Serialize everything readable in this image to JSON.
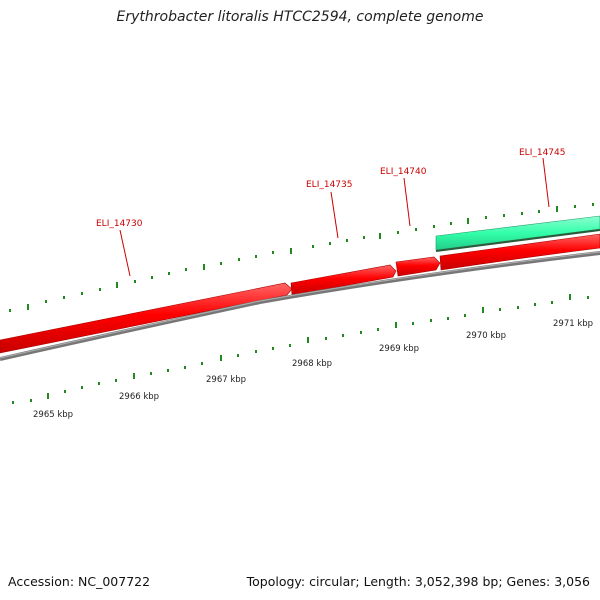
{
  "title": "Erythrobacter litoralis HTCC2594, complete genome",
  "footer": {
    "accession": "Accession: NC_007722",
    "summary": "Topology: circular; Length: 3,052,398 bp; Genes: 3,056"
  },
  "kbp_labels": [
    "2965 kbp",
    "2966 kbp",
    "2967 kbp",
    "2968 kbp",
    "2969 kbp",
    "2970 kbp",
    "2971 kbp"
  ],
  "genes": [
    {
      "name": "ELI_14730",
      "strand": "forward"
    },
    {
      "name": "ELI_14735",
      "strand": "forward"
    },
    {
      "name": "ELI_14740",
      "strand": "forward"
    },
    {
      "name": "ELI_14745",
      "strand": "reverse"
    }
  ],
  "colors": {
    "forward_gene": "#ff0000",
    "reverse_gene": "#33ffaa",
    "backbone": "#888888",
    "ticks": "#228822",
    "gene_label": "#cc0000"
  }
}
